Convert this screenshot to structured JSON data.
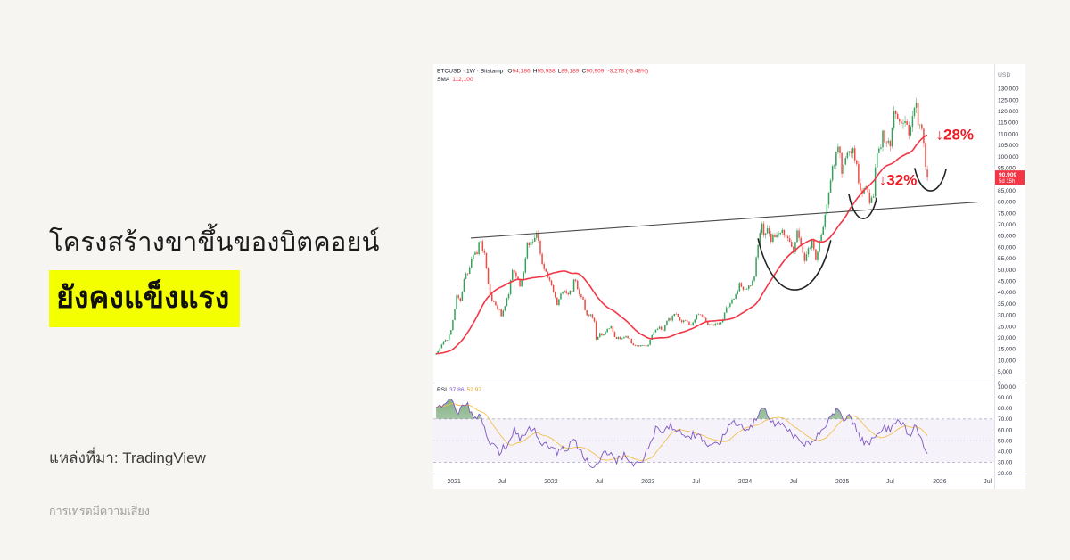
{
  "page": {
    "background": "#f7f5f2"
  },
  "headline": {
    "line1": "โครงสร้างขาขึ้นของบิตคอยน์",
    "line2": "ยังคงแข็งแรง",
    "highlight_color": "#f4ff00"
  },
  "source": {
    "label": "แหล่งที่มา: TradingView"
  },
  "disclaimer": {
    "label": "การเทรดมีความเสี่ยง"
  },
  "chart": {
    "header": {
      "title": "BTCUSD · 1W · Bitstamp",
      "o_label": "O",
      "o": "94,186",
      "h_label": "H",
      "h": "95,938",
      "l_label": "L",
      "l": "89,189",
      "c_label": "C",
      "c": "90,909",
      "change": "-3,278 (-3.48%)",
      "sma_label": "SMA",
      "sma_value": "112,100"
    },
    "rsi_legend": {
      "label": "RSI",
      "value": "37.86",
      "ma_value": "52.97"
    },
    "price_badge": {
      "price": "90,909",
      "countdown": "5d 15h"
    },
    "axis_currency": "USD",
    "colors": {
      "up": "#35a05a",
      "down": "#ef4a44",
      "sma": "#f23645",
      "badge": "#f23645",
      "annotation": "#ed1c24",
      "trendline": "#4a4a4a",
      "arc": "#222222",
      "rsi_line": "#7e57c2",
      "rsi_ma": "#f2c14e",
      "rsi_band": "rgba(126,87,194,0.08)",
      "axis_text": "#2a2e39",
      "grid_sep": "#e0e3eb",
      "rsi_over_green": "#2e7d32"
    }
  },
  "chart_data": {
    "type": "candlestick",
    "title": "BTCUSD weekly with SMA, trendline, RSI",
    "symbol": "BTCUSD",
    "interval": "1W",
    "exchange": "Bitstamp",
    "week0_date": "2020-10-26",
    "last_candle": {
      "open": 94186,
      "high": 95938,
      "low": 89189,
      "close": 90909,
      "change": -3278,
      "change_pct": -3.48
    },
    "sma": {
      "period": 30,
      "last": 112100
    },
    "rsi": {
      "period": 14,
      "last": 37.86,
      "ma_last": 52.97,
      "upper": 70,
      "mid": 50,
      "lower": 30
    },
    "y_axis": {
      "unit": "USD",
      "min": 0,
      "max": 130000,
      "tick_step": 5000,
      "tick_labels": [
        "130,000",
        "125,000",
        "120,000",
        "115,000",
        "110,000",
        "105,000",
        "100,000",
        "95,000",
        "90,000",
        "85,000",
        "80,000",
        "75,000",
        "70,000",
        "65,000",
        "60,000",
        "55,000",
        "50,000",
        "45,000",
        "40,000",
        "35,000",
        "30,000",
        "25,000",
        "20,000",
        "15,000",
        "10,000",
        "5,000",
        "0"
      ]
    },
    "rsi_axis": {
      "min": 20,
      "max": 100,
      "tick_step": 10,
      "tick_labels": [
        "100.00",
        "90.00",
        "80.00",
        "70.00",
        "60.00",
        "50.00",
        "40.00",
        "30.00",
        "20.00"
      ]
    },
    "x_axis": {
      "tick_labels": [
        "2021",
        "Jul",
        "2022",
        "Jul",
        "2023",
        "Jul",
        "2024",
        "Jul",
        "2025",
        "Jul",
        "2026",
        "Jul"
      ],
      "tick_weeks": [
        9.6,
        35.4,
        61.7,
        87.6,
        113.9,
        139.7,
        166.0,
        192.1,
        218.3,
        244.0,
        270.6,
        296.4
      ]
    },
    "price_weekly_anchors": [
      [
        0,
        13200
      ],
      [
        2,
        15500
      ],
      [
        4,
        18400
      ],
      [
        6,
        19200
      ],
      [
        8,
        23800
      ],
      [
        10,
        32200
      ],
      [
        11,
        38000
      ],
      [
        13,
        35500
      ],
      [
        15,
        46300
      ],
      [
        17,
        48600
      ],
      [
        19,
        54100
      ],
      [
        21,
        57300
      ],
      [
        22,
        58100
      ],
      [
        24,
        63500
      ],
      [
        25,
        58200
      ],
      [
        26,
        57700
      ],
      [
        28,
        43600
      ],
      [
        30,
        35700
      ],
      [
        32,
        34700
      ],
      [
        34,
        31800
      ],
      [
        35,
        29800
      ],
      [
        37,
        33900
      ],
      [
        39,
        39900
      ],
      [
        41,
        48900
      ],
      [
        43,
        48100
      ],
      [
        45,
        43200
      ],
      [
        47,
        47700
      ],
      [
        49,
        61300
      ],
      [
        51,
        61500
      ],
      [
        54,
        65500
      ],
      [
        56,
        57300
      ],
      [
        58,
        50100
      ],
      [
        60,
        46300
      ],
      [
        62,
        43100
      ],
      [
        64,
        36900
      ],
      [
        65,
        35100
      ],
      [
        67,
        38500
      ],
      [
        69,
        40100
      ],
      [
        71,
        39400
      ],
      [
        73,
        41300
      ],
      [
        74,
        46500
      ],
      [
        76,
        42000
      ],
      [
        79,
        36000
      ],
      [
        81,
        29500
      ],
      [
        83,
        29900
      ],
      [
        85,
        26500
      ],
      [
        86,
        19000
      ],
      [
        88,
        21500
      ],
      [
        90,
        21500
      ],
      [
        92,
        23300
      ],
      [
        94,
        24400
      ],
      [
        96,
        20000
      ],
      [
        98,
        19800
      ],
      [
        100,
        19500
      ],
      [
        102,
        20800
      ],
      [
        104,
        19200
      ],
      [
        106,
        16300
      ],
      [
        108,
        16200
      ],
      [
        110,
        16800
      ],
      [
        112,
        16500
      ],
      [
        114,
        16700
      ],
      [
        116,
        21100
      ],
      [
        118,
        23300
      ],
      [
        120,
        24600
      ],
      [
        122,
        23200
      ],
      [
        124,
        27500
      ],
      [
        126,
        28300
      ],
      [
        128,
        30300
      ],
      [
        130,
        29500
      ],
      [
        132,
        27100
      ],
      [
        134,
        27200
      ],
      [
        136,
        25900
      ],
      [
        138,
        26300
      ],
      [
        140,
        30600
      ],
      [
        142,
        30300
      ],
      [
        144,
        29200
      ],
      [
        146,
        26100
      ],
      [
        148,
        26000
      ],
      [
        150,
        25900
      ],
      [
        152,
        26600
      ],
      [
        154,
        28000
      ],
      [
        156,
        34100
      ],
      [
        158,
        34700
      ],
      [
        160,
        37700
      ],
      [
        162,
        40000
      ],
      [
        163,
        43800
      ],
      [
        165,
        42000
      ],
      [
        167,
        41700
      ],
      [
        169,
        42600
      ],
      [
        171,
        48300
      ],
      [
        173,
        62500
      ],
      [
        175,
        69000
      ],
      [
        176,
        65300
      ],
      [
        178,
        70000
      ],
      [
        180,
        63800
      ],
      [
        182,
        64000
      ],
      [
        184,
        66300
      ],
      [
        186,
        69000
      ],
      [
        188,
        64300
      ],
      [
        190,
        62700
      ],
      [
        192,
        58000
      ],
      [
        194,
        66500
      ],
      [
        196,
        60800
      ],
      [
        198,
        54800
      ],
      [
        200,
        59000
      ],
      [
        202,
        63200
      ],
      [
        204,
        54200
      ],
      [
        206,
        63600
      ],
      [
        208,
        68400
      ],
      [
        210,
        77100
      ],
      [
        212,
        91000
      ],
      [
        214,
        97700
      ],
      [
        216,
        104400
      ],
      [
        218,
        94300
      ],
      [
        220,
        98000
      ],
      [
        222,
        104700
      ],
      [
        224,
        103000
      ],
      [
        226,
        96100
      ],
      [
        228,
        84400
      ],
      [
        230,
        86800
      ],
      [
        232,
        82600
      ],
      [
        233,
        78300
      ],
      [
        235,
        84000
      ],
      [
        236,
        94700
      ],
      [
        238,
        103700
      ],
      [
        240,
        109000
      ],
      [
        242,
        104600
      ],
      [
        244,
        105700
      ],
      [
        246,
        117500
      ],
      [
        248,
        118000
      ],
      [
        250,
        117400
      ],
      [
        252,
        113500
      ],
      [
        254,
        110200
      ],
      [
        256,
        115900
      ],
      [
        258,
        122500
      ],
      [
        259,
        114800
      ],
      [
        261,
        110500
      ],
      [
        262,
        106200
      ],
      [
        263,
        94186
      ],
      [
        264,
        90909
      ]
    ],
    "rsi_weekly_anchors": [
      [
        0,
        78
      ],
      [
        8,
        88
      ],
      [
        12,
        75
      ],
      [
        16,
        86
      ],
      [
        20,
        72
      ],
      [
        24,
        74
      ],
      [
        28,
        48
      ],
      [
        34,
        40
      ],
      [
        38,
        46
      ],
      [
        42,
        60
      ],
      [
        45,
        52
      ],
      [
        52,
        63
      ],
      [
        56,
        50
      ],
      [
        60,
        45
      ],
      [
        65,
        40
      ],
      [
        70,
        43
      ],
      [
        74,
        50
      ],
      [
        78,
        38
      ],
      [
        84,
        27
      ],
      [
        88,
        33
      ],
      [
        92,
        40
      ],
      [
        97,
        32
      ],
      [
        102,
        37
      ],
      [
        107,
        26
      ],
      [
        110,
        30
      ],
      [
        114,
        44
      ],
      [
        118,
        60
      ],
      [
        122,
        58
      ],
      [
        126,
        64
      ],
      [
        130,
        60
      ],
      [
        134,
        50
      ],
      [
        138,
        56
      ],
      [
        143,
        52
      ],
      [
        148,
        44
      ],
      [
        152,
        47
      ],
      [
        156,
        60
      ],
      [
        160,
        66
      ],
      [
        164,
        62
      ],
      [
        168,
        58
      ],
      [
        172,
        72
      ],
      [
        175,
        81
      ],
      [
        178,
        74
      ],
      [
        182,
        66
      ],
      [
        186,
        64
      ],
      [
        190,
        58
      ],
      [
        194,
        52
      ],
      [
        198,
        46
      ],
      [
        202,
        50
      ],
      [
        206,
        55
      ],
      [
        210,
        68
      ],
      [
        214,
        77
      ],
      [
        216,
        79
      ],
      [
        218,
        70
      ],
      [
        222,
        72
      ],
      [
        226,
        60
      ],
      [
        228,
        52
      ],
      [
        232,
        46
      ],
      [
        236,
        56
      ],
      [
        240,
        62
      ],
      [
        244,
        60
      ],
      [
        246,
        67
      ],
      [
        250,
        66
      ],
      [
        254,
        55
      ],
      [
        258,
        63
      ],
      [
        261,
        52
      ],
      [
        264,
        37.86
      ]
    ],
    "trendline": {
      "from": {
        "week": 18.6,
        "price": 64000
      },
      "to": {
        "week": 291.3,
        "price": 79900
      }
    },
    "arcs": [
      {
        "weeks": [
          173,
          192,
          212
        ],
        "prices": [
          63600,
          41100,
          62800
        ]
      },
      {
        "weeks": [
          221.8,
          229.0,
          236.7
        ],
        "prices": [
          83300,
          72600,
          81700
        ]
      },
      {
        "weeks": [
          257.2,
          265.4,
          274.0
        ],
        "prices": [
          94700,
          84800,
          94300
        ]
      }
    ],
    "annotations": [
      {
        "label": "↓32%",
        "week": 238,
        "price": 87500
      },
      {
        "label": "↓28%",
        "week": 268.5,
        "price": 107500
      }
    ]
  }
}
